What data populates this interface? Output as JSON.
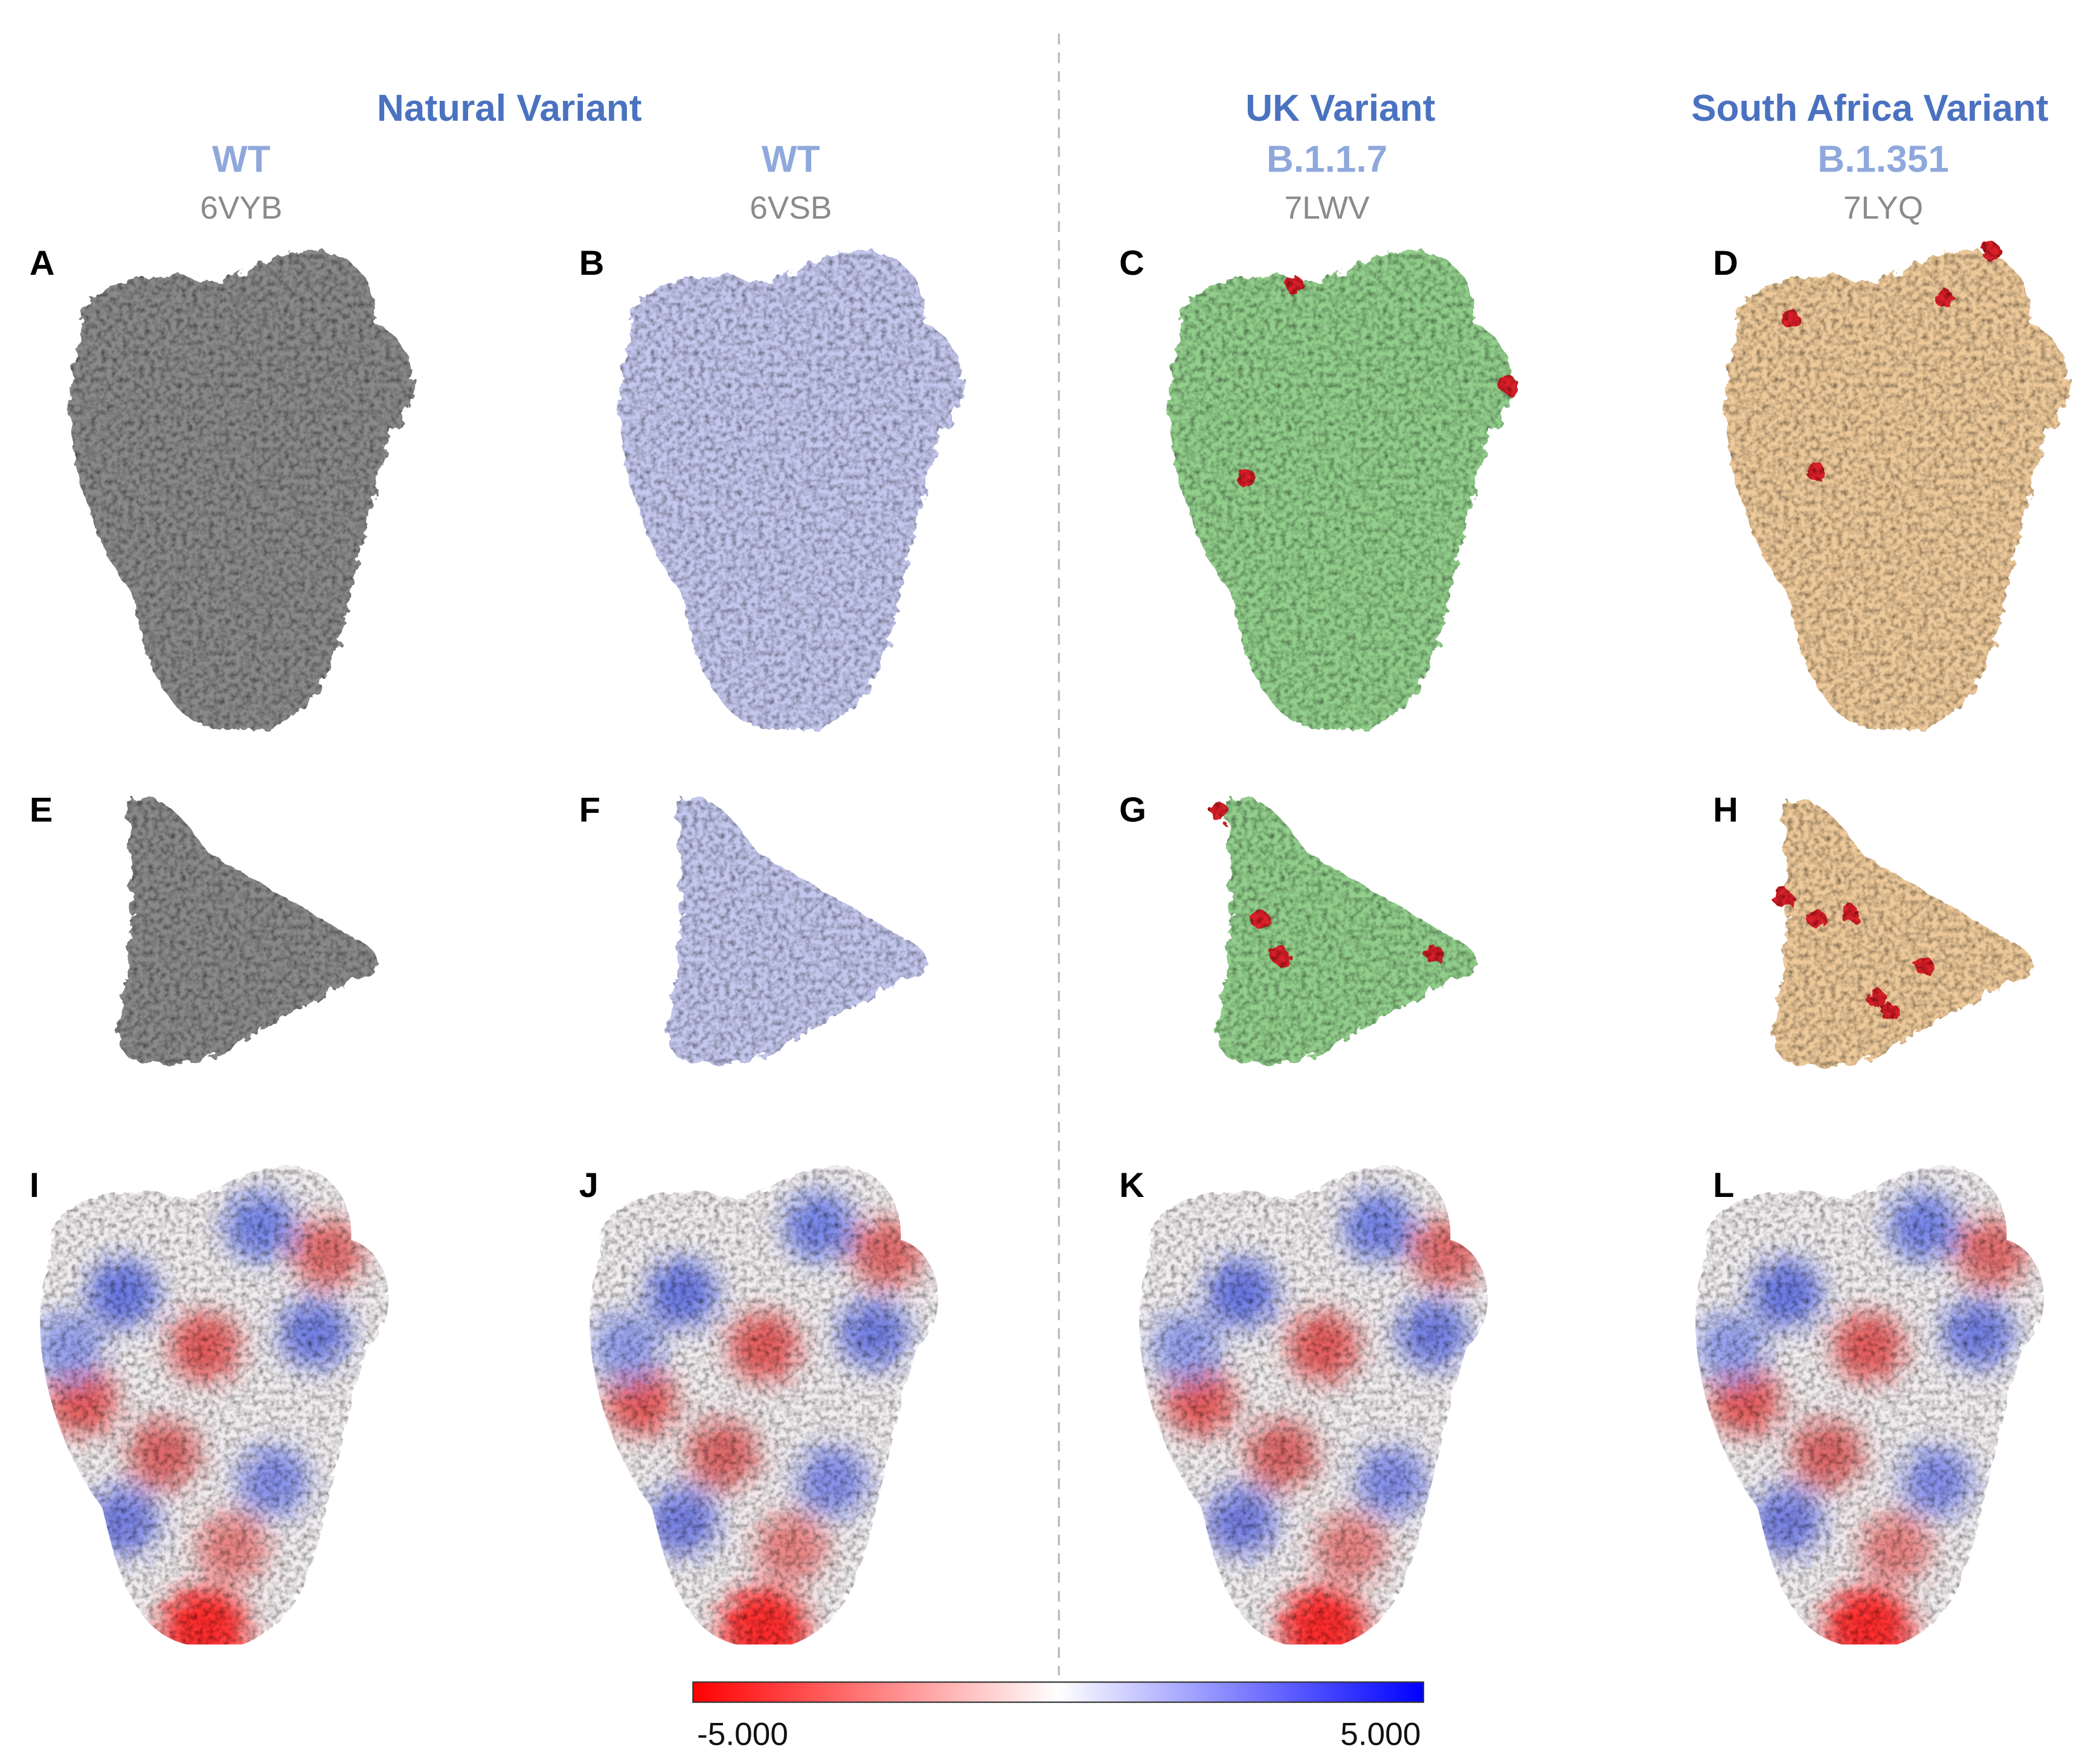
{
  "columns": [
    {
      "group": "Natural Variant",
      "variant": "WT",
      "pdb": "6VYB"
    },
    {
      "variant": "WT",
      "pdb": "6VSB"
    },
    {
      "group": "UK Variant",
      "variant": "B.1.1.7",
      "pdb": "7LWV"
    },
    {
      "group": "South Africa Variant",
      "variant": "B.1.351",
      "pdb": "7LYQ"
    }
  ],
  "panels": [
    "A",
    "B",
    "C",
    "D",
    "E",
    "F",
    "G",
    "H",
    "I",
    "J",
    "K",
    "L"
  ],
  "colorbar": {
    "min_label": "-5.000",
    "max_label": "5.000"
  }
}
